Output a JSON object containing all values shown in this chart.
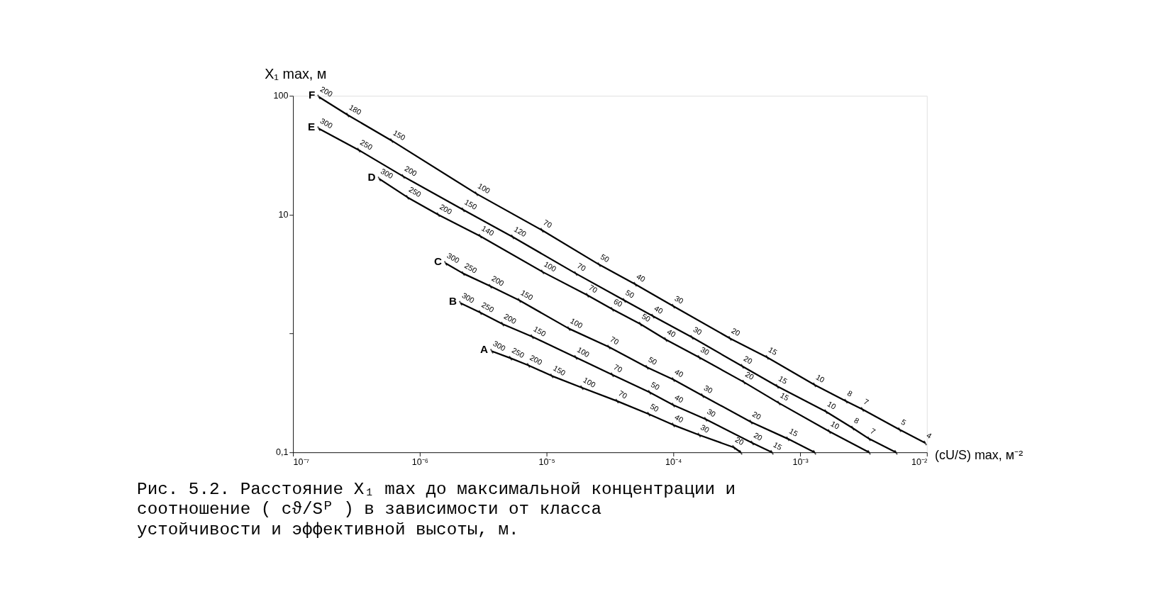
{
  "chart_data": {
    "type": "line",
    "xlabel": "(cU/S) max, м⁻²",
    "ylabel": "X₁ max, м",
    "log": "xy",
    "grid": false,
    "legend": false,
    "line_style": "solid",
    "marker": "cross",
    "xlim": [
      1e-07,
      0.01
    ],
    "ylim": [
      0.1,
      100
    ],
    "xticks": [
      {
        "value": 1e-07,
        "label": "10⁻⁷"
      },
      {
        "value": 1e-06,
        "label": "10⁻⁶"
      },
      {
        "value": 1e-05,
        "label": "10⁻⁵"
      },
      {
        "value": 0.0001,
        "label": "10⁻⁴"
      },
      {
        "value": 0.001,
        "label": "10⁻³"
      },
      {
        "value": 0.01,
        "label": "10⁻²"
      }
    ],
    "yticks": [
      {
        "value": 0.1,
        "label": "0,1"
      },
      {
        "value": 1,
        "label": null
      },
      10,
      100
    ],
    "series": [
      {
        "name": "F",
        "color": "#000000",
        "x": [
          1.6e-07,
          2.7e-07,
          6e-07,
          2.8e-06,
          9.2e-06,
          2.6e-05,
          5e-05,
          0.0001,
          0.00028,
          0.00055,
          0.0013,
          0.0023,
          0.0031,
          0.0061,
          0.0097
        ],
        "values": [
          98,
          69,
          42,
          15,
          7.4,
          3.8,
          2.6,
          1.7,
          0.91,
          0.63,
          0.37,
          0.27,
          0.23,
          0.155,
          0.12
        ]
      },
      {
        "name": "E",
        "color": "#000000",
        "x": [
          1.6e-07,
          3.3e-07,
          7.4e-07,
          2.2e-06,
          5.4e-06,
          1.7e-05,
          4.1e-05,
          6.9e-05,
          0.00014,
          0.00035,
          0.00066,
          0.0016,
          0.0026,
          0.0035,
          0.0057
        ],
        "values": [
          53,
          35,
          21,
          11,
          6.5,
          3.2,
          1.9,
          1.4,
          0.93,
          0.53,
          0.36,
          0.22,
          0.16,
          0.13,
          0.1
        ]
      },
      {
        "name": "D",
        "color": "#000000",
        "x": [
          4.8e-07,
          8e-07,
          1.4e-06,
          3e-06,
          9.3e-06,
          2.1e-05,
          3.3e-05,
          5.5e-05,
          8.7e-05,
          0.00016,
          0.00036,
          0.00068,
          0.0017,
          0.0035
        ],
        "values": [
          20,
          14,
          10,
          6.6,
          3.3,
          2.1,
          1.6,
          1.2,
          0.89,
          0.63,
          0.39,
          0.26,
          0.15,
          0.1
        ]
      },
      {
        "name": "C",
        "color": "#000000",
        "x": [
          1.6e-06,
          2.2e-06,
          3.6e-06,
          6.1e-06,
          1.5e-05,
          3.1e-05,
          6.2e-05,
          0.0001,
          0.00017,
          0.00041,
          0.0008,
          0.0013
        ],
        "values": [
          3.9,
          3.2,
          2.5,
          1.9,
          1.1,
          0.77,
          0.52,
          0.41,
          0.3,
          0.18,
          0.13,
          0.1
        ]
      },
      {
        "name": "B",
        "color": "#000000",
        "x": [
          2.1e-06,
          3e-06,
          4.5e-06,
          7.7e-06,
          1.7e-05,
          3.3e-05,
          6.5e-05,
          0.0001,
          0.00018,
          0.00042,
          0.0006
        ],
        "values": [
          1.8,
          1.5,
          1.2,
          0.94,
          0.63,
          0.45,
          0.32,
          0.25,
          0.19,
          0.12,
          0.1
        ]
      },
      {
        "name": "A",
        "color": "#000000",
        "x": [
          3.7e-06,
          5.2e-06,
          7.2e-06,
          1.1e-05,
          1.9e-05,
          3.6e-05,
          6.4e-05,
          0.0001,
          0.00016,
          0.0003,
          0.00034
        ],
        "values": [
          0.71,
          0.62,
          0.54,
          0.44,
          0.35,
          0.27,
          0.21,
          0.17,
          0.14,
          0.11,
          0.1
        ]
      }
    ],
    "annotations": [
      {
        "text": "200",
        "x": 1.6e-07,
        "y": 98
      },
      {
        "text": "180",
        "x": 2.7e-07,
        "y": 69
      },
      {
        "text": "150",
        "x": 6e-07,
        "y": 42
      },
      {
        "text": "100",
        "x": 2.8e-06,
        "y": 15
      },
      {
        "text": "70",
        "x": 9.2e-06,
        "y": 7.4
      },
      {
        "text": "50",
        "x": 2.6e-05,
        "y": 3.8
      },
      {
        "text": "40",
        "x": 5e-05,
        "y": 2.6
      },
      {
        "text": "30",
        "x": 0.0001,
        "y": 1.7
      },
      {
        "text": "20",
        "x": 0.00028,
        "y": 0.91
      },
      {
        "text": "15",
        "x": 0.00055,
        "y": 0.63
      },
      {
        "text": "10",
        "x": 0.0013,
        "y": 0.37
      },
      {
        "text": "8",
        "x": 0.0023,
        "y": 0.27
      },
      {
        "text": "7",
        "x": 0.0031,
        "y": 0.23
      },
      {
        "text": "5",
        "x": 0.0061,
        "y": 0.155
      },
      {
        "text": "4",
        "x": 0.0097,
        "y": 0.12
      },
      {
        "text": "300",
        "x": 1.6e-07,
        "y": 53
      },
      {
        "text": "250",
        "x": 3.3e-07,
        "y": 35
      },
      {
        "text": "200",
        "x": 7.4e-07,
        "y": 21
      },
      {
        "text": "150",
        "x": 2.2e-06,
        "y": 11
      },
      {
        "text": "120",
        "x": 5.4e-06,
        "y": 6.5
      },
      {
        "text": "70",
        "x": 1.7e-05,
        "y": 3.2
      },
      {
        "text": "50",
        "x": 4.1e-05,
        "y": 1.9
      },
      {
        "text": "40",
        "x": 6.9e-05,
        "y": 1.4
      },
      {
        "text": "30",
        "x": 0.00014,
        "y": 0.93
      },
      {
        "text": "20",
        "x": 0.00035,
        "y": 0.53
      },
      {
        "text": "15",
        "x": 0.00066,
        "y": 0.36
      },
      {
        "text": "10",
        "x": 0.0016,
        "y": 0.22
      },
      {
        "text": "8",
        "x": 0.0026,
        "y": 0.16
      },
      {
        "text": "7",
        "x": 0.0035,
        "y": 0.13
      },
      {
        "text": "300",
        "x": 4.8e-07,
        "y": 20
      },
      {
        "text": "250",
        "x": 8e-07,
        "y": 14
      },
      {
        "text": "200",
        "x": 1.4e-06,
        "y": 10
      },
      {
        "text": "140",
        "x": 3e-06,
        "y": 6.6
      },
      {
        "text": "100",
        "x": 9.3e-06,
        "y": 3.3
      },
      {
        "text": "70",
        "x": 2.1e-05,
        "y": 2.1
      },
      {
        "text": "60",
        "x": 3.3e-05,
        "y": 1.6
      },
      {
        "text": "50",
        "x": 5.5e-05,
        "y": 1.2
      },
      {
        "text": "40",
        "x": 8.7e-05,
        "y": 0.89
      },
      {
        "text": "30",
        "x": 0.00016,
        "y": 0.63
      },
      {
        "text": "20",
        "x": 0.00036,
        "y": 0.39
      },
      {
        "text": "15",
        "x": 0.00068,
        "y": 0.26
      },
      {
        "text": "10",
        "x": 0.0017,
        "y": 0.15
      },
      {
        "text": "300",
        "x": 1.6e-06,
        "y": 3.9
      },
      {
        "text": "250",
        "x": 2.2e-06,
        "y": 3.2
      },
      {
        "text": "200",
        "x": 3.6e-06,
        "y": 2.5
      },
      {
        "text": "150",
        "x": 6.1e-06,
        "y": 1.9
      },
      {
        "text": "100",
        "x": 1.5e-05,
        "y": 1.1
      },
      {
        "text": "70",
        "x": 3.1e-05,
        "y": 0.77
      },
      {
        "text": "50",
        "x": 6.2e-05,
        "y": 0.52
      },
      {
        "text": "40",
        "x": 0.0001,
        "y": 0.41
      },
      {
        "text": "30",
        "x": 0.00017,
        "y": 0.3
      },
      {
        "text": "20",
        "x": 0.00041,
        "y": 0.18
      },
      {
        "text": "15",
        "x": 0.0008,
        "y": 0.13
      },
      {
        "text": "300",
        "x": 2.1e-06,
        "y": 1.8
      },
      {
        "text": "250",
        "x": 3e-06,
        "y": 1.5
      },
      {
        "text": "200",
        "x": 4.5e-06,
        "y": 1.2
      },
      {
        "text": "150",
        "x": 7.7e-06,
        "y": 0.94
      },
      {
        "text": "100",
        "x": 1.7e-05,
        "y": 0.63
      },
      {
        "text": "70",
        "x": 3.3e-05,
        "y": 0.45
      },
      {
        "text": "50",
        "x": 6.5e-05,
        "y": 0.32
      },
      {
        "text": "40",
        "x": 0.0001,
        "y": 0.25
      },
      {
        "text": "30",
        "x": 0.00018,
        "y": 0.19
      },
      {
        "text": "20",
        "x": 0.00042,
        "y": 0.12
      },
      {
        "text": "15",
        "x": 0.0006,
        "y": 0.1
      },
      {
        "text": "300",
        "x": 3.7e-06,
        "y": 0.71
      },
      {
        "text": "250",
        "x": 5.2e-06,
        "y": 0.62
      },
      {
        "text": "200",
        "x": 7.2e-06,
        "y": 0.54
      },
      {
        "text": "150",
        "x": 1.1e-05,
        "y": 0.44
      },
      {
        "text": "100",
        "x": 1.9e-05,
        "y": 0.35
      },
      {
        "text": "70",
        "x": 3.6e-05,
        "y": 0.27
      },
      {
        "text": "50",
        "x": 6.4e-05,
        "y": 0.21
      },
      {
        "text": "40",
        "x": 0.0001,
        "y": 0.17
      },
      {
        "text": "30",
        "x": 0.00016,
        "y": 0.14
      },
      {
        "text": "20",
        "x": 0.0003,
        "y": 0.11
      },
      "Рис. 5.2. Расстояние X₁ max до максимальной концентрации и",
      "соотношение ( cϑ/Sᴾ ) в зависимости от класса",
      "устойчивости и эффективной высоты, м."
    ]
  }
}
